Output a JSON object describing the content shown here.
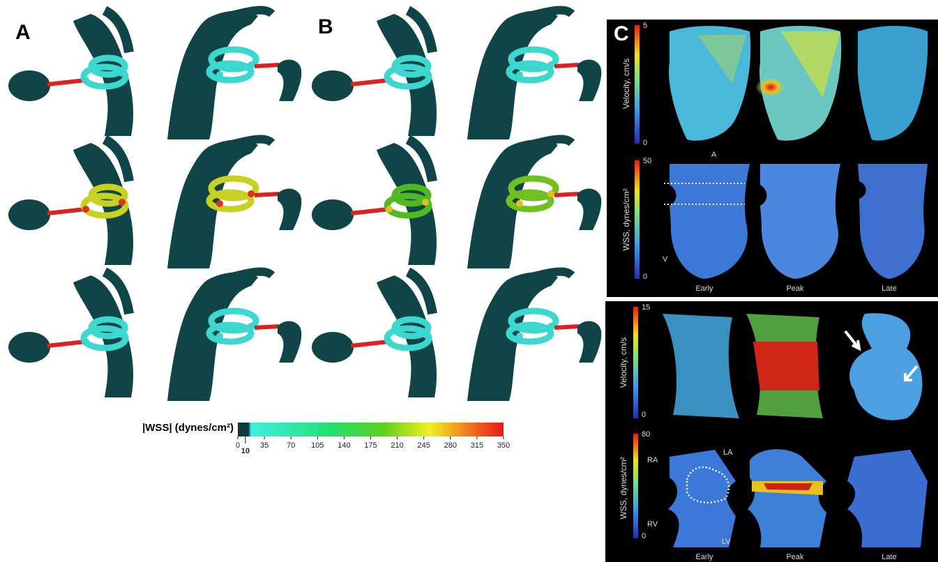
{
  "panel_a": {
    "label": "A"
  },
  "panel_b": {
    "label": "B"
  },
  "wss_legend": {
    "title": "|WSS| (dynes/cm²)",
    "ticks": [
      0,
      10,
      35,
      70,
      105,
      140,
      175,
      210,
      245,
      280,
      315,
      350
    ]
  },
  "panel_c": {
    "label": "C",
    "top": {
      "velocity_scale": {
        "label": "Velocity, cm/s",
        "max": 5,
        "min": 0
      },
      "wss_scale": {
        "label": "WSS, dynes/cm²",
        "max": 50,
        "min": 0
      },
      "marker_a": "A",
      "marker_v": "V",
      "phases": [
        "Early",
        "Peak",
        "Late"
      ]
    },
    "bottom": {
      "velocity_scale": {
        "label": "Velocity, cm/s",
        "max": 15,
        "min": 0
      },
      "wss_scale": {
        "label": "WSS, dynes/cm²",
        "max": 80,
        "min": 0
      },
      "chambers": [
        "RA",
        "LA",
        "RV",
        "LV"
      ],
      "phases": [
        "Early",
        "Peak",
        "Late"
      ]
    }
  }
}
